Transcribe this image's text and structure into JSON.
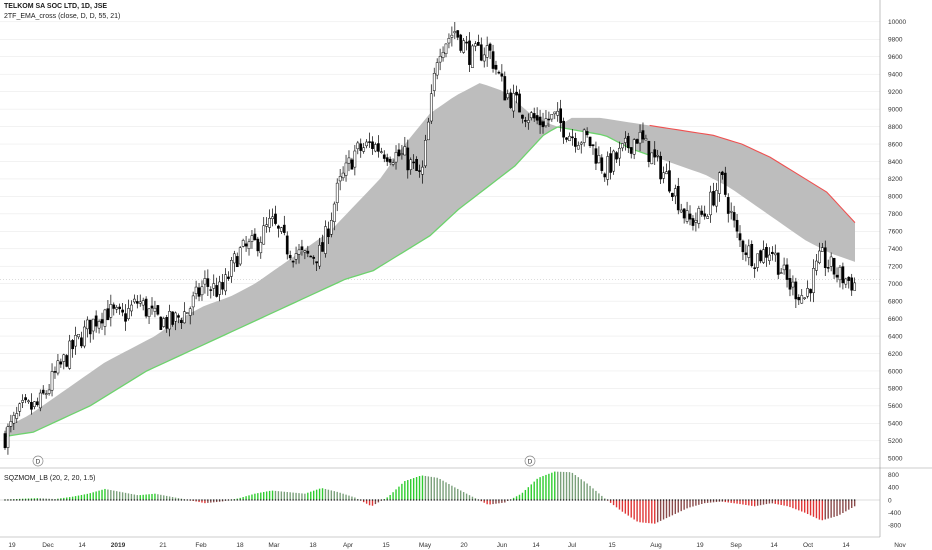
{
  "legend": {
    "title": "TELKOM SA SOC LTD, 1D, JSE",
    "indicator": "2TF_EMA_cross (close, D, D, 55, 21)",
    "oscillator": "SQZMOM_LB (20, 2, 20, 1.5)"
  },
  "colors": {
    "up_body": "#ffffff",
    "down_body": "#000000",
    "wick": "#000000",
    "band_fill": "#bdbdbd",
    "bull_ema_edge": "#6dd36d",
    "bear_ema_edge": "#ef5050",
    "hist_pos_strong": "#2ecc2e",
    "hist_pos_weak": "#7aa07a",
    "hist_neg_strong": "#e03535",
    "hist_neg_weak": "#8a4a4a",
    "grid": "#e6e6e6"
  },
  "event_markers": [
    "D",
    "D"
  ],
  "chart_data": [
    {
      "type": "candlestick",
      "title": "TELKOM SA SOC LTD, 1D, JSE",
      "x_ticks": [
        "19",
        "Dec",
        "14",
        "2019",
        "21",
        "Feb",
        "18",
        "Mar",
        "18",
        "Apr",
        "15",
        "May",
        "20",
        "Jun",
        "14",
        "Jul",
        "15",
        "Aug",
        "19",
        "Sep",
        "14",
        "Oct",
        "14",
        "Nov"
      ],
      "y_ticks": [
        5000,
        5200,
        5400,
        5600,
        5800,
        6000,
        6200,
        6400,
        6600,
        6800,
        7000,
        7200,
        7400,
        7600,
        7800,
        8000,
        8200,
        8400,
        8600,
        8800,
        9000,
        9200,
        9400,
        9600,
        9800,
        10000
      ],
      "ylim": [
        4900,
        10250
      ],
      "close_anchors": [
        5250,
        5550,
        5600,
        5950,
        6250,
        6500,
        6700,
        6600,
        6800,
        6600,
        6550,
        6700,
        7000,
        6900,
        7350,
        7450,
        7700,
        7400,
        7300,
        7350,
        8100,
        8500,
        8600,
        8500,
        8450,
        8200,
        9700,
        9900,
        9600,
        9700,
        9200,
        9000,
        8850,
        8900,
        8700,
        8650,
        8300,
        8500,
        8700,
        8400,
        8150,
        7700,
        7800,
        8200,
        7500,
        7300,
        7400,
        7000,
        6850,
        7300,
        7100,
        7000
      ],
      "series": [
        {
          "name": "EMA 21",
          "anchors": [
            5350,
            5500,
            5700,
            5900,
            6100,
            6250,
            6400,
            6600,
            6750,
            6850,
            7000,
            7200,
            7400,
            7600,
            7900,
            8200,
            8600,
            8950,
            9150,
            9300,
            9200,
            8950,
            8800,
            8750,
            8700,
            8550,
            8450,
            8350,
            8250,
            8100,
            7900,
            7700,
            7500,
            7350,
            7250
          ]
        },
        {
          "name": "EMA 55",
          "anchors": [
            5250,
            5300,
            5450,
            5600,
            5800,
            6000,
            6150,
            6300,
            6450,
            6600,
            6750,
            6900,
            7050,
            7150,
            7350,
            7550,
            7850,
            8100,
            8350,
            8700,
            8900,
            8900,
            8850,
            8800,
            8750,
            8700,
            8600,
            8450,
            8250,
            8050,
            7700
          ]
        }
      ],
      "last_price": 7050
    },
    {
      "type": "bar",
      "title": "SQZMOM_LB (20, 2, 20, 1.5)",
      "y_ticks": [
        800,
        400,
        0,
        -400,
        -800
      ],
      "ylim": [
        -950,
        950
      ],
      "momentum_anchors": [
        10,
        40,
        60,
        30,
        100,
        200,
        350,
        250,
        150,
        200,
        100,
        0,
        -100,
        -50,
        50,
        200,
        300,
        250,
        200,
        380,
        250,
        80,
        -200,
        100,
        600,
        780,
        700,
        400,
        120,
        -150,
        -80,
        200,
        700,
        900,
        880,
        500,
        50,
        -350,
        -700,
        -750,
        -500,
        -250,
        -100,
        -50,
        -120,
        -200,
        -100,
        -200,
        -400,
        -650,
        -500,
        -200
      ]
    }
  ]
}
